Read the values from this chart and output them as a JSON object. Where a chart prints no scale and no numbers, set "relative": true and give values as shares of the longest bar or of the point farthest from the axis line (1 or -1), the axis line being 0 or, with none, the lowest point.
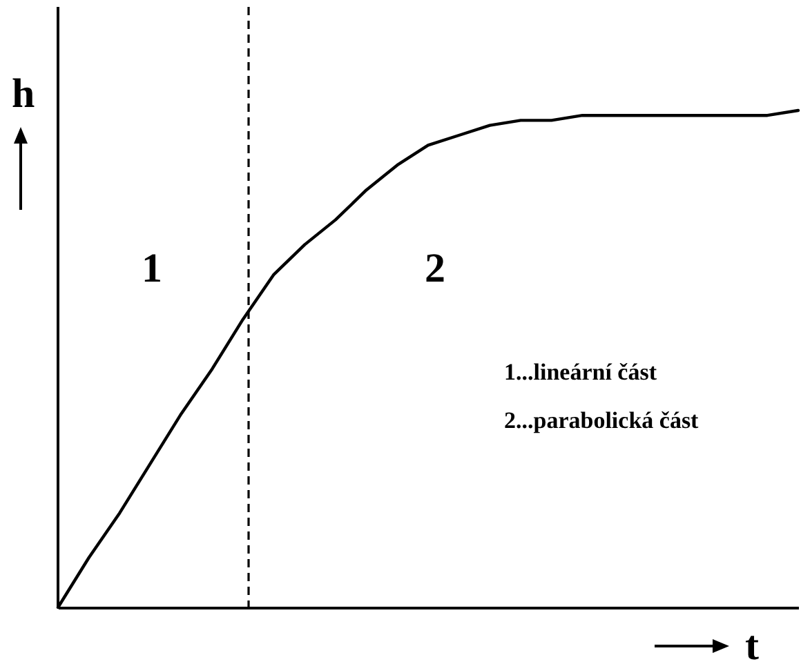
{
  "chart_data": {
    "type": "line",
    "relative": true,
    "xlabel": "t",
    "ylabel": "h",
    "color": "#000000",
    "line_style": "solid",
    "marker": "none",
    "categories": [
      null,
      null,
      null,
      null,
      null,
      null,
      null,
      null,
      null,
      null,
      null,
      null,
      null,
      null,
      null,
      null,
      null,
      null,
      null,
      null,
      null,
      null,
      null,
      null,
      null
    ],
    "values": [
      0,
      0.1,
      0.19,
      0.29,
      0.39,
      0.48,
      0.58,
      0.67,
      0.73,
      0.78,
      0.84,
      0.89,
      0.93,
      0.95,
      0.97,
      0.98,
      0.98,
      0.99,
      0.99,
      0.99,
      0.99,
      0.99,
      0.99,
      0.99,
      1
    ],
    "annotations": [
      "1",
      "2",
      "1...lineární část",
      "2...parabolická část"
    ]
  }
}
